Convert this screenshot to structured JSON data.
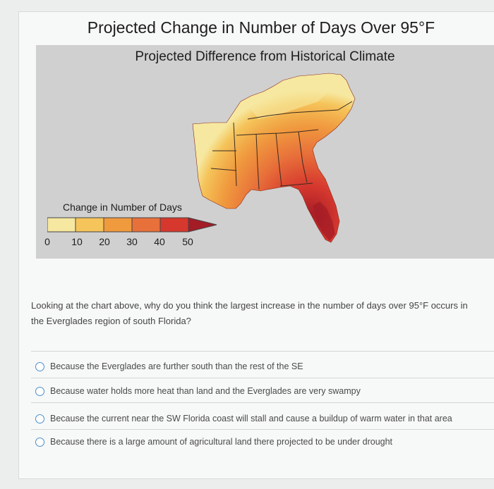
{
  "title": "Projected Change in Number of Days Over 95°F",
  "map": {
    "subtitle": "Projected Difference from Historical Climate",
    "region": "Southeastern United States",
    "legend": {
      "title": "Change in Number of Days",
      "ticks": [
        "0",
        "10",
        "20",
        "30",
        "40",
        "50"
      ],
      "colors": [
        "#f6e8a0",
        "#f5c45a",
        "#f09a3e",
        "#e8703a",
        "#d6382e",
        "#a41c26"
      ]
    }
  },
  "quiz": {
    "question": "Looking at the chart above, why do you think the largest increase in the number of days over 95°F occurs in the Everglades region of south Florida?",
    "options": [
      "Because the Everglades are further south than the rest of the SE",
      "Because water holds more heat than land and the Everglades are very swampy",
      "Because the current near the SW Florida coast will stall and cause a buildup of warm water in that area",
      "Because there is a large amount of agricultural land there projected to be under drought"
    ]
  }
}
